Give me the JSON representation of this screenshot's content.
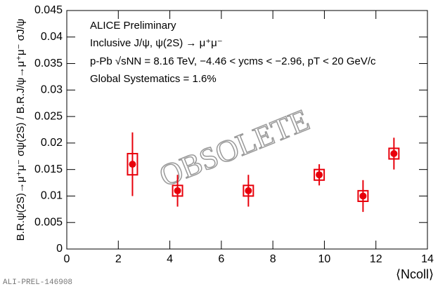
{
  "chart_data": {
    "type": "scatter",
    "annotations": [
      "ALICE Preliminary",
      "Inclusive J/ψ, ψ(2S) → μ⁺μ⁻",
      "p-Pb √sNN = 8.16 TeV, −4.46 < ycms < −2.96, pT < 20 GeV/c",
      "Global Systematics = 1.6%"
    ],
    "watermark": "OBSOLETE",
    "footer": "ALI-PREL-146908",
    "xlabel": "⟨Ncoll⟩",
    "ylabel": "B.R.ψ(2S)→μ⁺μ⁻ σψ(2S) / B.R.J/ψ→μ⁺μ⁻ σJ/ψ",
    "x": [
      2.55,
      4.3,
      7.05,
      9.8,
      11.5,
      12.7
    ],
    "series": [
      {
        "color": "#e8000b",
        "values": [
          0.016,
          0.011,
          0.011,
          0.014,
          0.01,
          0.018
        ],
        "yerr": [
          0.006,
          0.003,
          0.003,
          0.002,
          0.003,
          0.003
        ],
        "ysyst": [
          0.002,
          0.001,
          0.001,
          0.001,
          0.001,
          0.001
        ]
      }
    ],
    "xlim": [
      0,
      14
    ],
    "xticks": [
      0,
      2,
      4,
      6,
      8,
      10,
      12,
      14
    ],
    "ylim": [
      0,
      0.045
    ],
    "yticks": [
      0,
      0.005,
      0.01,
      0.015,
      0.02,
      0.025,
      0.03,
      0.035,
      0.04,
      0.045
    ]
  }
}
